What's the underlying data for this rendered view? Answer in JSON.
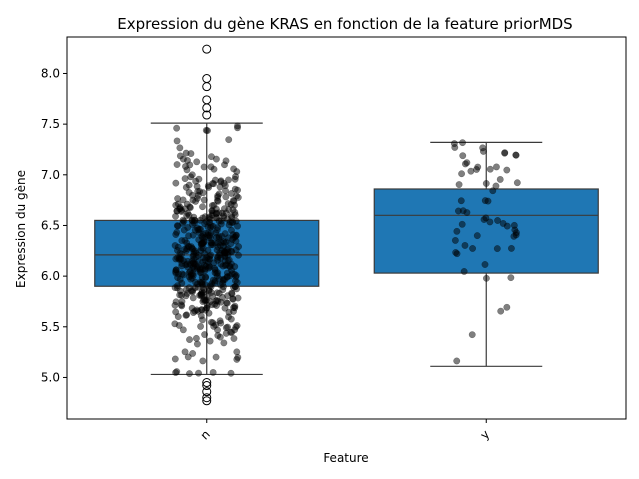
{
  "chart_data": {
    "type": "box",
    "title": "Expression du gène KRAS en fonction de la feature priorMDS",
    "xlabel": "Feature",
    "ylabel": "Expression du gène",
    "categories": [
      "n",
      "y"
    ],
    "ylim": [
      4.59,
      8.36
    ],
    "yticks": [
      5.0,
      5.5,
      6.0,
      6.5,
      7.0,
      7.5,
      8.0
    ],
    "ytick_labels": [
      "5.0",
      "5.5",
      "6.0",
      "6.5",
      "7.0",
      "7.5",
      "8.0"
    ],
    "boxes": [
      {
        "category": "n",
        "whisker_low": 5.03,
        "q1": 5.9,
        "median": 6.21,
        "q3": 6.55,
        "whisker_high": 7.51,
        "outliers": [
          8.24,
          7.95,
          7.87,
          7.74,
          7.66,
          7.59,
          4.95,
          4.92,
          4.86,
          4.8,
          4.77
        ]
      },
      {
        "category": "y",
        "whisker_low": 5.11,
        "q1": 6.03,
        "median": 6.6,
        "q3": 6.86,
        "whisker_high": 7.32,
        "outliers": []
      }
    ],
    "box_color": "#1f77b4",
    "line_color": "#3a3a3a",
    "point_color": "#000000",
    "point_count_approx": [
      520,
      60
    ]
  }
}
